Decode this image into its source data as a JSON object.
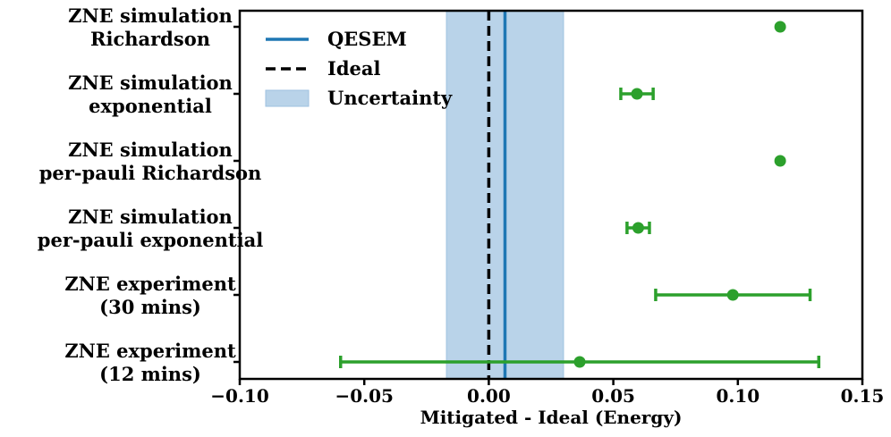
{
  "chart_data": {
    "type": "scatter",
    "orientation": "horizontal",
    "title": "",
    "xlabel": "Mitigated - Ideal (Energy)",
    "ylabel": "",
    "xlim": [
      -0.1,
      0.15
    ],
    "xticks": [
      -0.1,
      -0.05,
      0.0,
      0.05,
      0.1,
      0.15
    ],
    "xtick_labels": [
      "−0.10",
      "−0.05",
      "0.00",
      "0.05",
      "0.10",
      "0.15"
    ],
    "grid": false,
    "legend_position": "top-left",
    "categories": [
      [
        "ZNE simulation",
        "Richardson"
      ],
      [
        "ZNE simulation",
        "exponential"
      ],
      [
        "ZNE simulation",
        "per-pauli Richardson"
      ],
      [
        "ZNE simulation",
        "per-pauli exponential"
      ],
      [
        "ZNE experiment",
        "(30 mins)"
      ],
      [
        "ZNE experiment",
        "(12 mins)"
      ]
    ],
    "points": [
      {
        "value": 0.117,
        "err_low": 0.117,
        "err_high": 0.117
      },
      {
        "value": 0.0595,
        "err_low": 0.053,
        "err_high": 0.066
      },
      {
        "value": 0.117,
        "err_low": 0.117,
        "err_high": 0.117
      },
      {
        "value": 0.06,
        "err_low": 0.0555,
        "err_high": 0.0645
      },
      {
        "value": 0.098,
        "err_low": 0.067,
        "err_high": 0.129
      },
      {
        "value": 0.0365,
        "err_low": -0.0595,
        "err_high": 0.1325
      }
    ],
    "reference_lines": {
      "qesem": 0.0065,
      "ideal": 0.0
    },
    "uncertainty_band": [
      -0.017,
      0.03
    ],
    "legend": [
      "QESEM",
      "Ideal",
      "Uncertainty"
    ],
    "colors": {
      "points": "#2ca02c",
      "qesem": "#1f77b4",
      "ideal": "#000000",
      "band": "#b9d3e9",
      "band_edge": "#9fc2e0"
    }
  }
}
